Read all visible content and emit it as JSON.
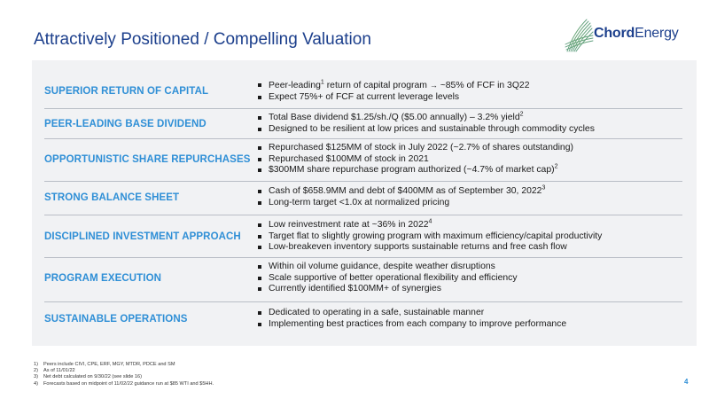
{
  "header": {
    "title": "Attractively Positioned / Compelling Valuation",
    "logo_text_part1": "Chord",
    "logo_text_part2": "Energy"
  },
  "rows": [
    {
      "label": "SUPERIOR RETURN OF CAPITAL",
      "bullets": [
        {
          "text": "Peer-leading",
          "sup": "1",
          "text2": " return of capital program ",
          "arrow": "→",
          "text3": " ~85% of FCF in 3Q22"
        },
        {
          "text": "Expect 75%+ of FCF at current leverage levels"
        }
      ]
    },
    {
      "label": "PEER-LEADING BASE DIVIDEND",
      "bullets": [
        {
          "text": "Total Base dividend $1.25/sh./Q ($5.00 annually) – 3.2% yield",
          "sup": "2"
        },
        {
          "text": "Designed to be resilient at low prices and sustainable through commodity cycles"
        }
      ]
    },
    {
      "label": "OPPORTUNISTIC SHARE REPURCHASES",
      "bullets": [
        {
          "text": "Repurchased $125MM of stock in July 2022 (~2.7% of shares outstanding)"
        },
        {
          "text": "Repurchased $100MM of stock in 2021"
        },
        {
          "text": "$300MM share repurchase program authorized (~4.7% of market cap)",
          "sup": "2"
        }
      ]
    },
    {
      "label": "STRONG BALANCE SHEET",
      "bullets": [
        {
          "text": "Cash of $658.9MM and debt of $400MM as of September 30, 2022",
          "sup": "3"
        },
        {
          "text": "Long-term target <1.0x at normalized pricing"
        }
      ]
    },
    {
      "label": "DISCIPLINED INVESTMENT APPROACH",
      "bullets": [
        {
          "text": "Low reinvestment rate at ~36% in 2022",
          "sup": "4"
        },
        {
          "text": "Target flat to slightly growing program with maximum efficiency/capital productivity"
        },
        {
          "text": "Low-breakeven inventory supports sustainable returns and free cash flow"
        }
      ]
    },
    {
      "label": "PROGRAM EXECUTION",
      "bullets": [
        {
          "text": "Within oil volume guidance, despite weather disruptions"
        },
        {
          "text": "Scale supportive of better operational flexibility and efficiency"
        },
        {
          "text": "Currently identified $100MM+ of synergies"
        }
      ]
    },
    {
      "label": "SUSTAINABLE OPERATIONS",
      "bullets": [
        {
          "text": "Dedicated to operating in a safe, sustainable manner"
        },
        {
          "text": "Implementing best practices from each company to improve performance"
        }
      ]
    }
  ],
  "footnotes": [
    {
      "num": "1)",
      "text": "Peers include CIVI, CPE, ERF, MGY, MTDR, PDCE and SM"
    },
    {
      "num": "2)",
      "text": "As of 11/01/22"
    },
    {
      "num": "3)",
      "text": "Net debt calculated on 9/30/22 (see slide 16)"
    },
    {
      "num": "4)",
      "text": "Forecasts based on midpoint of 11/02/22 guidance run at $85 WTI and $5HH."
    }
  ],
  "page_number": "4",
  "colors": {
    "title": "#1c3f8c",
    "label": "#2f8fd6",
    "panel": "#f1f2f4",
    "logo_gradient_start": "#9ccc3c",
    "logo_gradient_end": "#1f6fc0"
  },
  "icons": {
    "logo": "chord-energy-swoosh-icon"
  }
}
